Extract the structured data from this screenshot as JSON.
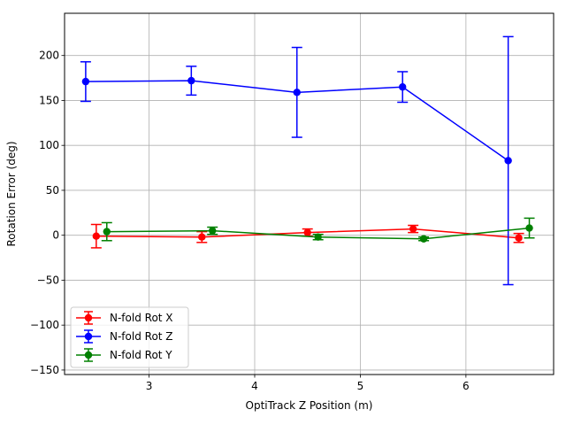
{
  "chart_data": {
    "type": "line",
    "title": "",
    "xlabel": "OptiTrack Z Position (m)",
    "ylabel": "Rotation Error (deg)",
    "xlim": [
      2.2,
      6.83
    ],
    "ylim": [
      -155,
      247
    ],
    "xticks": [
      3,
      4,
      5,
      6
    ],
    "yticks": [
      -150,
      -100,
      -50,
      0,
      50,
      100,
      150,
      200
    ],
    "ytick_labels": [
      "−150",
      "−100",
      "−50",
      "0",
      "50",
      "100",
      "150",
      "200"
    ],
    "grid": true,
    "legend_position": "lower-left",
    "series": [
      {
        "name": "N-fold Rot X",
        "color": "#ff0000",
        "x": [
          2.5,
          3.5,
          4.5,
          5.5,
          6.5
        ],
        "y": [
          -1,
          -2,
          3,
          7,
          -3
        ],
        "err": [
          13,
          6,
          4,
          4,
          5
        ]
      },
      {
        "name": "N-fold Rot Z",
        "color": "#0000ff",
        "x": [
          2.4,
          3.4,
          4.4,
          5.4,
          6.4
        ],
        "y": [
          171,
          172,
          159,
          165,
          83
        ],
        "err": [
          22,
          16,
          50,
          17,
          138
        ]
      },
      {
        "name": "N-fold Rot Y",
        "color": "#008000",
        "x": [
          2.6,
          3.6,
          4.6,
          5.6,
          6.6
        ],
        "y": [
          4,
          5,
          -2,
          -4,
          8
        ],
        "err": [
          10,
          4,
          3,
          2,
          11
        ]
      }
    ]
  }
}
